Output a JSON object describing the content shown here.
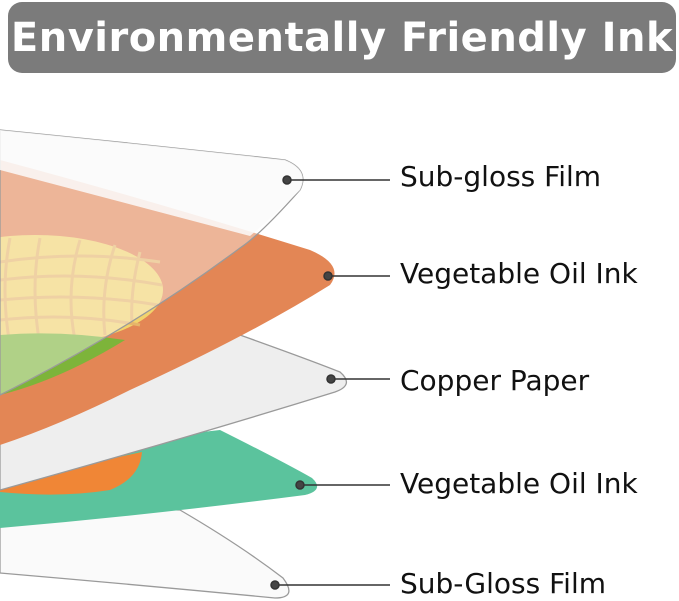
{
  "title": "Environmentally Friendly Ink",
  "layers": [
    {
      "label": "Sub-gloss Film",
      "color": "#fafafa"
    },
    {
      "label": "Vegetable Oil Ink",
      "color": "#e38655"
    },
    {
      "label": "Copper Paper",
      "color": "#eeeeee"
    },
    {
      "label": "Vegetable Oil Ink",
      "color": "#5bc39d"
    },
    {
      "label": "Sub-Gloss Film",
      "color": "#fafafa"
    }
  ],
  "colors": {
    "title_bg": "#7b7b7b",
    "globe": "#f2d36c",
    "leaf": "#9dc36c",
    "accent_orange": "#f08636"
  }
}
